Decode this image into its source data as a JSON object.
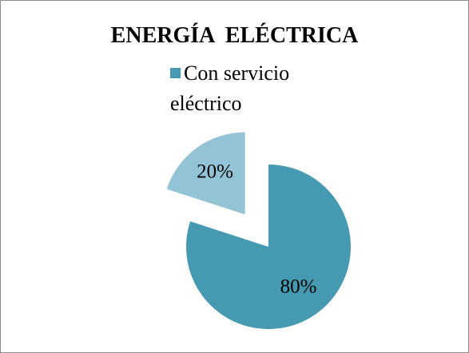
{
  "chart_data": {
    "type": "pie",
    "title": "ENERGÍA  ELÉCTRICA",
    "categories": [
      "Con servicio eléctrico",
      null
    ],
    "values": [
      80,
      20
    ],
    "value_labels": [
      "80%",
      "20%"
    ],
    "colors": [
      "#4599b0",
      "#93c4d5"
    ],
    "exploded": [
      false,
      true
    ],
    "legend": "top"
  }
}
